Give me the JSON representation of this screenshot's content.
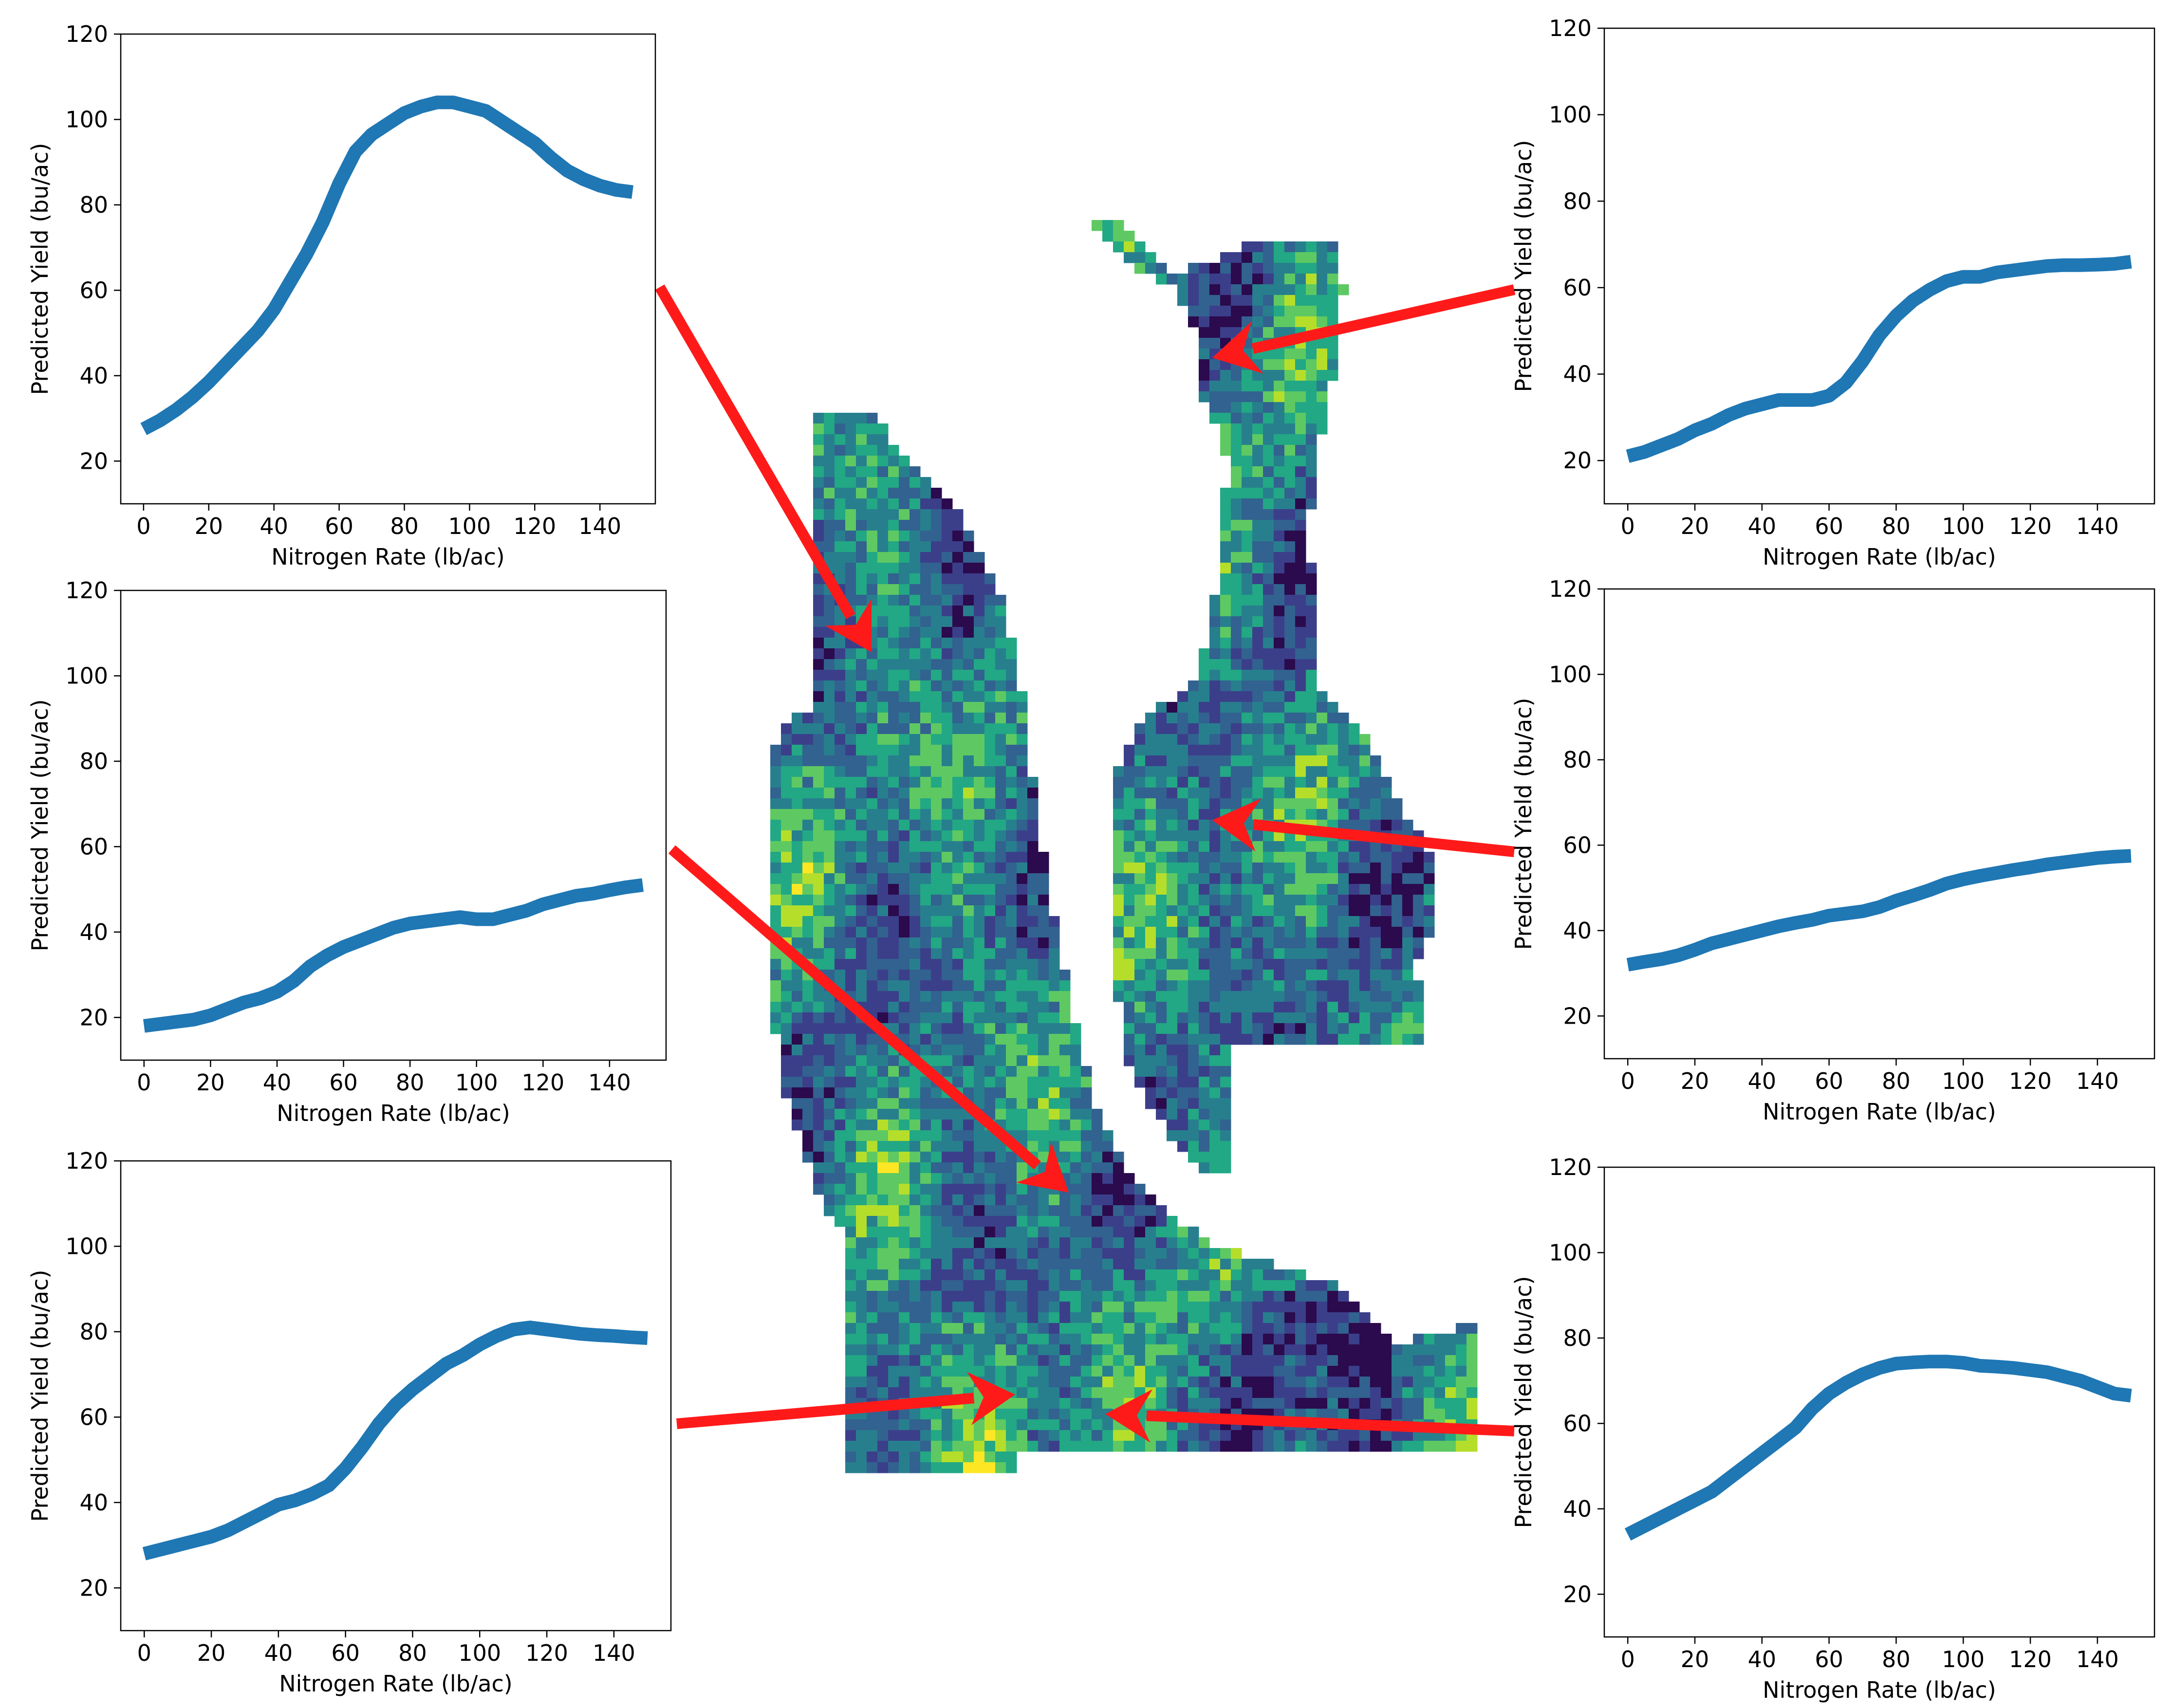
{
  "colors": {
    "series": "#1f77b4",
    "arrow": "#ff1a1a",
    "map_palette": [
      "#2b0a4d",
      "#3b3f8a",
      "#32628f",
      "#277f8e",
      "#22a884",
      "#5ec962",
      "#b5de2b",
      "#fde725"
    ]
  },
  "map": {
    "name": "field-yield-map"
  },
  "chart_data": [
    {
      "id": "top-left",
      "type": "line",
      "xlabel": "Nitrogen Rate (lb/ac)",
      "ylabel": "Predicted Yield (bu/ac)",
      "xlim": [
        -7,
        157
      ],
      "ylim": [
        10,
        120
      ],
      "xticks": [
        0,
        20,
        40,
        60,
        80,
        100,
        120,
        140
      ],
      "yticks": [
        20,
        40,
        60,
        80,
        100,
        120
      ],
      "grid": false,
      "x": [
        0,
        5,
        10,
        15,
        20,
        25,
        30,
        35,
        40,
        45,
        50,
        55,
        60,
        65,
        70,
        75,
        80,
        85,
        90,
        95,
        100,
        105,
        110,
        115,
        120,
        125,
        130,
        135,
        140,
        145,
        150
      ],
      "y": [
        27.5,
        29.5,
        32,
        35,
        38.5,
        42.5,
        46.5,
        50.5,
        55.5,
        62,
        68.5,
        76,
        85,
        92.5,
        96.5,
        99,
        101.5,
        103,
        104,
        104,
        103,
        102,
        99.5,
        97,
        94.5,
        91,
        88,
        86,
        84.5,
        83.5,
        83
      ]
    },
    {
      "id": "middle-left",
      "type": "line",
      "xlabel": "Nitrogen Rate (lb/ac)",
      "ylabel": "Predicted Yield (bu/ac)",
      "xlim": [
        -7,
        157
      ],
      "ylim": [
        10,
        120
      ],
      "xticks": [
        0,
        20,
        40,
        60,
        80,
        100,
        120,
        140
      ],
      "yticks": [
        20,
        40,
        60,
        80,
        100,
        120
      ],
      "grid": false,
      "x": [
        0,
        5,
        10,
        15,
        20,
        25,
        30,
        35,
        40,
        45,
        50,
        55,
        60,
        65,
        70,
        75,
        80,
        85,
        90,
        95,
        100,
        105,
        110,
        115,
        120,
        125,
        130,
        135,
        140,
        145,
        150
      ],
      "y": [
        18,
        18.5,
        19,
        19.5,
        20.5,
        22,
        23.5,
        24.5,
        26,
        28.5,
        32,
        34.5,
        36.5,
        38,
        39.5,
        41,
        42,
        42.5,
        43,
        43.5,
        43,
        43,
        44,
        45,
        46.5,
        47.5,
        48.5,
        49,
        49.8,
        50.5,
        51
      ]
    },
    {
      "id": "bottom-left",
      "type": "line",
      "xlabel": "Nitrogen Rate (lb/ac)",
      "ylabel": "Predicted Yield (bu/ac)",
      "xlim": [
        -7,
        157
      ],
      "ylim": [
        10,
        120
      ],
      "xticks": [
        0,
        20,
        40,
        60,
        80,
        100,
        120,
        140
      ],
      "yticks": [
        20,
        40,
        60,
        80,
        100,
        120
      ],
      "grid": false,
      "x": [
        0,
        5,
        10,
        15,
        20,
        25,
        30,
        35,
        40,
        45,
        50,
        55,
        60,
        65,
        70,
        75,
        80,
        85,
        90,
        95,
        100,
        105,
        110,
        115,
        120,
        125,
        130,
        135,
        140,
        145,
        150
      ],
      "y": [
        28,
        29,
        30,
        31,
        32,
        33.5,
        35.5,
        37.5,
        39.5,
        40.5,
        42,
        44,
        48,
        53,
        58.5,
        63,
        66.5,
        69.5,
        72.5,
        74.5,
        77,
        79,
        80.5,
        81,
        80.5,
        80,
        79.5,
        79.2,
        79,
        78.7,
        78.5
      ]
    },
    {
      "id": "top-right",
      "type": "line",
      "xlabel": "Nitrogen Rate (lb/ac)",
      "ylabel": "Predicted Yield (bu/ac)",
      "xlim": [
        -7,
        157
      ],
      "ylim": [
        10,
        120
      ],
      "xticks": [
        0,
        20,
        40,
        60,
        80,
        100,
        120,
        140
      ],
      "yticks": [
        20,
        40,
        60,
        80,
        100,
        120
      ],
      "grid": false,
      "x": [
        0,
        5,
        10,
        15,
        20,
        25,
        30,
        35,
        40,
        45,
        50,
        55,
        60,
        65,
        70,
        75,
        80,
        85,
        90,
        95,
        100,
        105,
        110,
        115,
        120,
        125,
        130,
        135,
        140,
        145,
        150
      ],
      "y": [
        21,
        22,
        23.5,
        25,
        27,
        28.5,
        30.5,
        32,
        33,
        34,
        34,
        34,
        35,
        38,
        43,
        49,
        53.5,
        57,
        59.5,
        61.5,
        62.5,
        62.5,
        63.5,
        64,
        64.5,
        65,
        65.2,
        65.2,
        65.3,
        65.5,
        66
      ]
    },
    {
      "id": "middle-right",
      "type": "line",
      "xlabel": "Nitrogen Rate (lb/ac)",
      "ylabel": "Predicted Yield (bu/ac)",
      "xlim": [
        -7,
        157
      ],
      "ylim": [
        10,
        120
      ],
      "xticks": [
        0,
        20,
        40,
        60,
        80,
        100,
        120,
        140
      ],
      "yticks": [
        20,
        40,
        60,
        80,
        100,
        120
      ],
      "grid": false,
      "x": [
        0,
        5,
        10,
        15,
        20,
        25,
        30,
        35,
        40,
        45,
        50,
        55,
        60,
        65,
        70,
        75,
        80,
        85,
        90,
        95,
        100,
        105,
        110,
        115,
        120,
        125,
        130,
        135,
        140,
        145,
        150
      ],
      "y": [
        32,
        32.7,
        33.3,
        34.2,
        35.5,
        37,
        38,
        39,
        40,
        41,
        41.8,
        42.5,
        43.5,
        44,
        44.5,
        45.5,
        47,
        48.2,
        49.5,
        51,
        52,
        52.8,
        53.5,
        54.2,
        54.8,
        55.5,
        56,
        56.5,
        57,
        57.3,
        57.5
      ]
    },
    {
      "id": "bottom-right",
      "type": "line",
      "xlabel": "Nitrogen Rate (lb/ac)",
      "ylabel": "Predicted Yield (bu/ac)",
      "xlim": [
        -7,
        157
      ],
      "ylim": [
        10,
        120
      ],
      "xticks": [
        0,
        20,
        40,
        60,
        80,
        100,
        120,
        140
      ],
      "yticks": [
        20,
        40,
        60,
        80,
        100,
        120
      ],
      "grid": false,
      "x": [
        0,
        5,
        10,
        15,
        20,
        25,
        30,
        35,
        40,
        45,
        50,
        55,
        60,
        65,
        70,
        75,
        80,
        85,
        90,
        95,
        100,
        105,
        110,
        115,
        120,
        125,
        130,
        135,
        140,
        145,
        150
      ],
      "y": [
        34,
        36,
        38,
        40,
        42,
        44,
        47,
        50,
        53,
        56,
        59,
        63.5,
        67,
        69.5,
        71.5,
        73,
        74,
        74.3,
        74.5,
        74.5,
        74.2,
        73.5,
        73.3,
        73,
        72.5,
        72,
        71,
        70,
        68.5,
        67,
        66.5
      ]
    }
  ]
}
